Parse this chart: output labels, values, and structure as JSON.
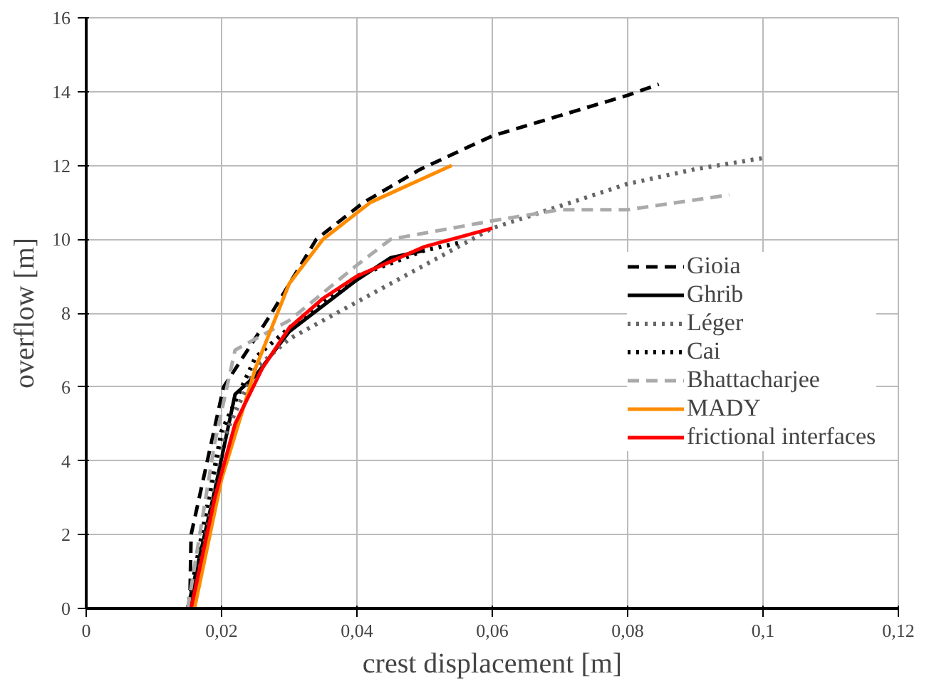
{
  "chart_data": {
    "type": "line",
    "xlabel": "crest displacement [m]",
    "ylabel": "overflow [m]",
    "xlim": [
      0,
      0.12
    ],
    "ylim": [
      0,
      16
    ],
    "xticks": [
      0,
      {
        "value": 0.02,
        "label": "0,02"
      },
      {
        "value": 0.04,
        "label": "0,04"
      },
      {
        "value": 0.06,
        "label": "0,06"
      },
      {
        "value": 0.08,
        "label": "0,08"
      },
      {
        "value": 0.1,
        "label": "0,1"
      },
      {
        "value": 0.12,
        "label": "0,12"
      }
    ],
    "yticks": [
      0,
      2,
      4,
      6,
      8,
      10,
      12,
      14,
      16
    ],
    "grid": true,
    "legend": "right",
    "marker": "none",
    "series": [
      {
        "name": "Gioia",
        "color": "#000000",
        "line_style": "dashed",
        "x": [
          0.0153,
          0.0155,
          0.0203,
          0.0274,
          0.034,
          0.041,
          0.0494,
          0.06,
          0.08,
          0.0846
        ],
        "values": [
          0,
          2,
          6,
          8,
          10,
          11,
          11.9,
          12.8,
          13.9,
          14.2
        ]
      },
      {
        "name": "Ghrib",
        "color": "#000000",
        "line_style": "solid",
        "x": [
          0.015,
          0.019,
          0.022,
          0.025,
          0.03,
          0.04,
          0.045,
          0.05
        ],
        "values": [
          0,
          3.2,
          5.8,
          6.3,
          7.5,
          8.9,
          9.5,
          9.7
        ]
      },
      {
        "name": "Léger",
        "color": "#666666",
        "line_style": "dotted",
        "x": [
          0.015,
          0.02,
          0.025,
          0.03,
          0.04,
          0.05,
          0.06,
          0.07,
          0.08,
          0.09,
          0.1
        ],
        "values": [
          0,
          4.5,
          6.5,
          7.3,
          8.3,
          9.3,
          10.3,
          10.9,
          11.5,
          11.9,
          12.2
        ]
      },
      {
        "name": "Cai",
        "color": "#000000",
        "line_style": "dotted",
        "x": [
          0.015,
          0.02,
          0.025,
          0.03,
          0.04,
          0.05,
          0.055
        ],
        "values": [
          0,
          4.8,
          6.8,
          7.6,
          9.0,
          9.7,
          9.9
        ]
      },
      {
        "name": "Bhattacharjee",
        "color": "#aaaaaa",
        "line_style": "dashed",
        "x": [
          0.015,
          0.019,
          0.022,
          0.025,
          0.03,
          0.04,
          0.045,
          0.06,
          0.07,
          0.08,
          0.095
        ],
        "values": [
          0,
          4.5,
          7.0,
          7.3,
          7.8,
          9.3,
          10.0,
          10.5,
          10.8,
          10.8,
          11.2
        ]
      },
      {
        "name": "MADY",
        "color": "#ff8c00",
        "line_style": "solid",
        "x": [
          0.016,
          0.02,
          0.025,
          0.03,
          0.035,
          0.042,
          0.054
        ],
        "values": [
          0,
          3.5,
          6.5,
          8.8,
          10.0,
          11.0,
          12.0
        ]
      },
      {
        "name": "frictional interfaces",
        "color": "#ff0000",
        "line_style": "solid",
        "x": [
          0.0155,
          0.019,
          0.022,
          0.026,
          0.03,
          0.035,
          0.04,
          0.045,
          0.05,
          0.06
        ],
        "values": [
          0,
          3,
          5.0,
          6.5,
          7.6,
          8.4,
          9.0,
          9.4,
          9.8,
          10.3
        ]
      }
    ]
  }
}
